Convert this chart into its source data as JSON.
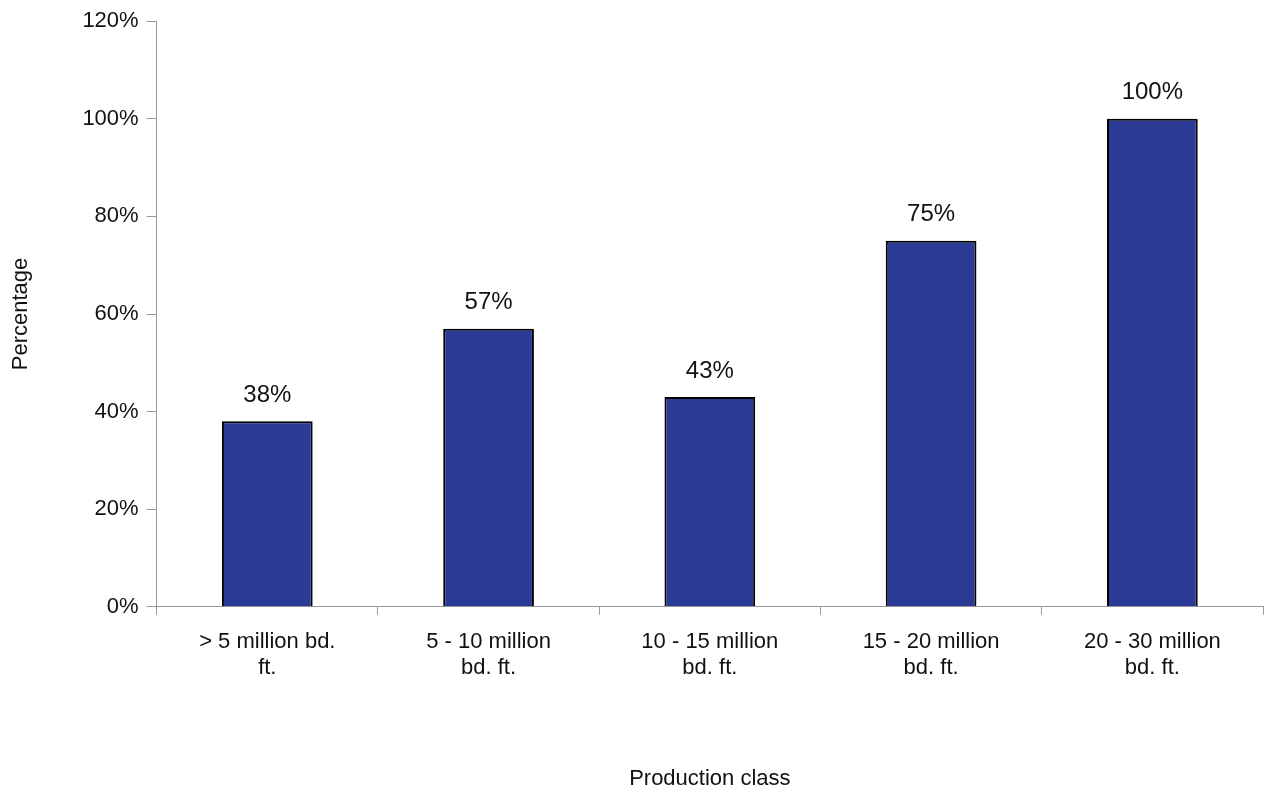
{
  "chart_data": {
    "type": "bar",
    "xlabel": "Production class",
    "ylabel": "Percentage",
    "categories": [
      "> 5 million bd. ft.",
      "5 - 10 million bd. ft.",
      "10 - 15 million bd. ft.",
      "15 - 20 million bd. ft.",
      "20 - 30 million bd. ft."
    ],
    "values": [
      38,
      57,
      43,
      75,
      100
    ],
    "color": "#2b3a94",
    "ylim": [
      0,
      120
    ],
    "yticks": [
      {
        "value": 0,
        "label": "0%"
      },
      {
        "value": 20,
        "label": "20%"
      },
      {
        "value": 40,
        "label": "40%"
      },
      {
        "value": 60,
        "label": "60%"
      },
      {
        "value": 80,
        "label": "80%"
      },
      {
        "value": 100,
        "label": "100%"
      },
      {
        "value": 120,
        "label": "120%"
      }
    ],
    "value_labels": [
      "38%",
      "57%",
      "43%",
      "75%",
      "100%"
    ],
    "grid": false,
    "legend": false
  }
}
